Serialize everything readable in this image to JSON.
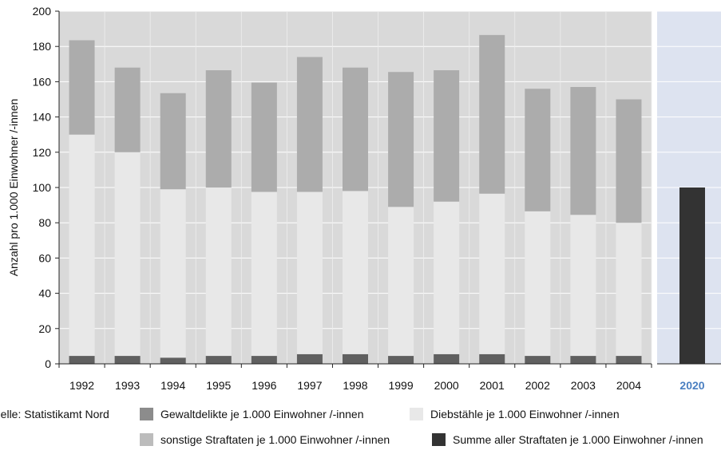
{
  "chart_data": {
    "type": "bar",
    "stacked": true,
    "ylabel": "Anzahl pro 1.000 Einwohner /-innen",
    "ylim": [
      0,
      200
    ],
    "yticks": [
      "0",
      "20",
      "40",
      "60",
      "80",
      "100",
      "120",
      "140",
      "160",
      "180",
      "200"
    ],
    "categories": [
      "1992",
      "1993",
      "1994",
      "1995",
      "1996",
      "1997",
      "1998",
      "1999",
      "2000",
      "2001",
      "2002",
      "2003",
      "2004"
    ],
    "series": [
      {
        "name": "Gewaltdelikte je 1.000 Einwohner /-innen",
        "color": "#606060",
        "values": [
          4.5,
          4.5,
          3.5,
          4.5,
          4.5,
          5.5,
          5.5,
          4.5,
          5.5,
          5.5,
          4.5,
          4.5,
          4.5
        ]
      },
      {
        "name": "Diebstähle je 1.000 Einwohner /-innen",
        "color": "#e8e8e8",
        "values": [
          125.5,
          115.5,
          95.5,
          95.5,
          93,
          92,
          92.5,
          84.5,
          86.5,
          91,
          82,
          80,
          75.5
        ]
      },
      {
        "name": "sonstige Straftaten je 1.000 Einwohner /-innen",
        "color": "#acacac",
        "values": [
          53.5,
          48,
          54.5,
          66.5,
          62,
          76.5,
          70,
          76.5,
          74.5,
          90,
          69.5,
          72.5,
          70
        ]
      }
    ],
    "target": {
      "category": "2020",
      "value": 100,
      "series": "Summe aller Straftaten je 1.000 Einwohner /-innen",
      "color": "#333333"
    },
    "plot_background": "#d9d9d9",
    "target_panel_background": "#dde3f0",
    "grid": true,
    "legend_position": "bottom"
  },
  "legend": {
    "source": "Quelle: Statistikamt Nord",
    "items": [
      {
        "label": "Gewaltdelikte je 1.000 Einwohner /-innen",
        "color": "#8c8c8c"
      },
      {
        "label": "Diebstähle je 1.000 Einwohner /-innen",
        "color": "#e8e8e8"
      },
      {
        "label": "sonstige Straftaten je 1.000 Einwohner /-innen",
        "color": "#bcbcbc"
      },
      {
        "label": "Summe aller Straftaten je 1.000 Einwohner /-innen",
        "color": "#333333"
      }
    ]
  }
}
